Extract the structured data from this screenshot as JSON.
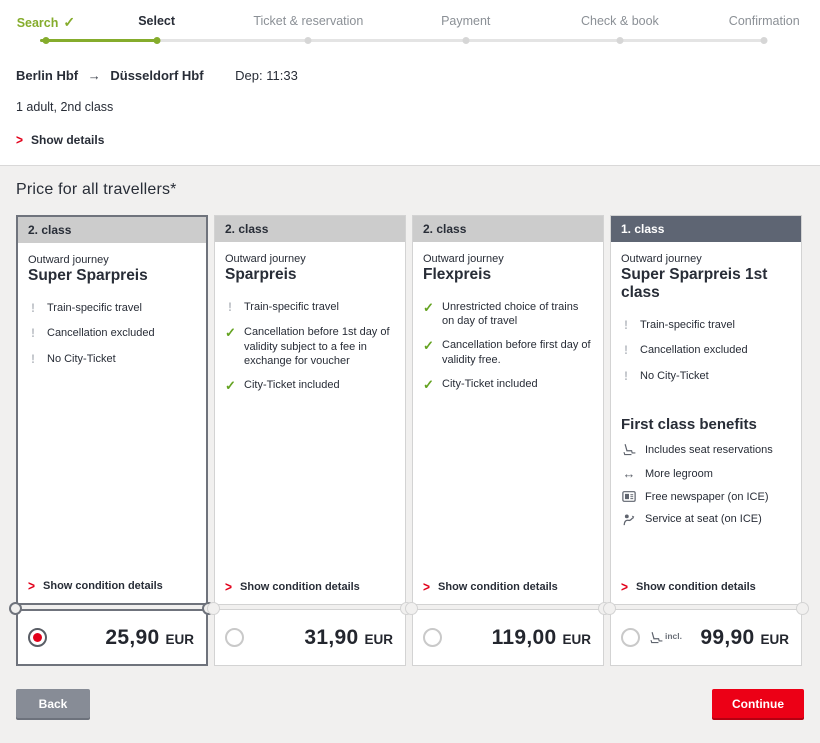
{
  "colors": {
    "accent_green": "#85ac2c",
    "accent_red": "#e2001a",
    "continue_red": "#ec0016",
    "dark_text": "#282d37",
    "muted_text": "#8b9096",
    "card_header_bg": "#cccccc",
    "first_class_header_bg": "#5e6573",
    "page_bg": "#f1f0ef",
    "back_button_gray": "#878c96"
  },
  "icons": {
    "route_arrow": "→",
    "chevron_right": ">",
    "check": "✓",
    "exclamation": "!",
    "legroom": "↔",
    "search_done_check": "✓"
  },
  "steps": [
    {
      "label": "Search",
      "state": "done"
    },
    {
      "label": "Select",
      "state": "current"
    },
    {
      "label": "Ticket & reservation",
      "state": "upcoming"
    },
    {
      "label": "Payment",
      "state": "upcoming"
    },
    {
      "label": "Check & book",
      "state": "upcoming"
    },
    {
      "label": "Confirmation",
      "state": "upcoming"
    }
  ],
  "journey": {
    "from": "Berlin Hbf",
    "to": "Düsseldorf Hbf",
    "departure": "Dep: 11:33",
    "passengers": "1 adult, 2nd class",
    "show_details_label": "Show details"
  },
  "pricing": {
    "title": "Price for all travellers*",
    "condition_link_label": "Show condition details",
    "currency": "EUR",
    "cards": [
      {
        "class_label": "2. class",
        "class_type": "second",
        "journey_type": "Outward journey",
        "fare_name": "Super Sparpreis",
        "selected": true,
        "features": [
          {
            "icon": "exclamation",
            "text": "Train-specific travel"
          },
          {
            "icon": "exclamation",
            "text": "Cancellation excluded"
          },
          {
            "icon": "exclamation",
            "text": "No City-Ticket"
          }
        ],
        "price": "25,90"
      },
      {
        "class_label": "2. class",
        "class_type": "second",
        "journey_type": "Outward journey",
        "fare_name": "Sparpreis",
        "selected": false,
        "features": [
          {
            "icon": "exclamation",
            "text": "Train-specific travel"
          },
          {
            "icon": "check",
            "text": "Cancellation before 1st day of validity subject to a fee in exchange for voucher"
          },
          {
            "icon": "check",
            "text": "City-Ticket included"
          }
        ],
        "price": "31,90"
      },
      {
        "class_label": "2. class",
        "class_type": "second",
        "journey_type": "Outward journey",
        "fare_name": "Flexpreis",
        "selected": false,
        "features": [
          {
            "icon": "check",
            "text": "Unrestricted choice of trains on day of travel"
          },
          {
            "icon": "check",
            "text": "Cancellation before first day of validity free."
          },
          {
            "icon": "check",
            "text": "City-Ticket included"
          }
        ],
        "price": "119,00"
      },
      {
        "class_label": "1. class",
        "class_type": "first",
        "journey_type": "Outward journey",
        "fare_name": "Super Sparpreis 1st class",
        "selected": false,
        "features": [
          {
            "icon": "exclamation",
            "text": "Train-specific travel"
          },
          {
            "icon": "exclamation",
            "text": "Cancellation excluded"
          },
          {
            "icon": "exclamation",
            "text": "No City-Ticket"
          }
        ],
        "benefits_title": "First class benefits",
        "benefits": [
          {
            "icon": "seat",
            "text": "Includes seat reservations"
          },
          {
            "icon": "legroom",
            "text": "More legroom"
          },
          {
            "icon": "newspaper",
            "text": "Free newspaper (on ICE)"
          },
          {
            "icon": "service",
            "text": "Service at seat (on ICE)"
          }
        ],
        "price_note": "incl.",
        "price": "99,90"
      }
    ]
  },
  "footer": {
    "back_label": "Back",
    "continue_label": "Continue"
  }
}
